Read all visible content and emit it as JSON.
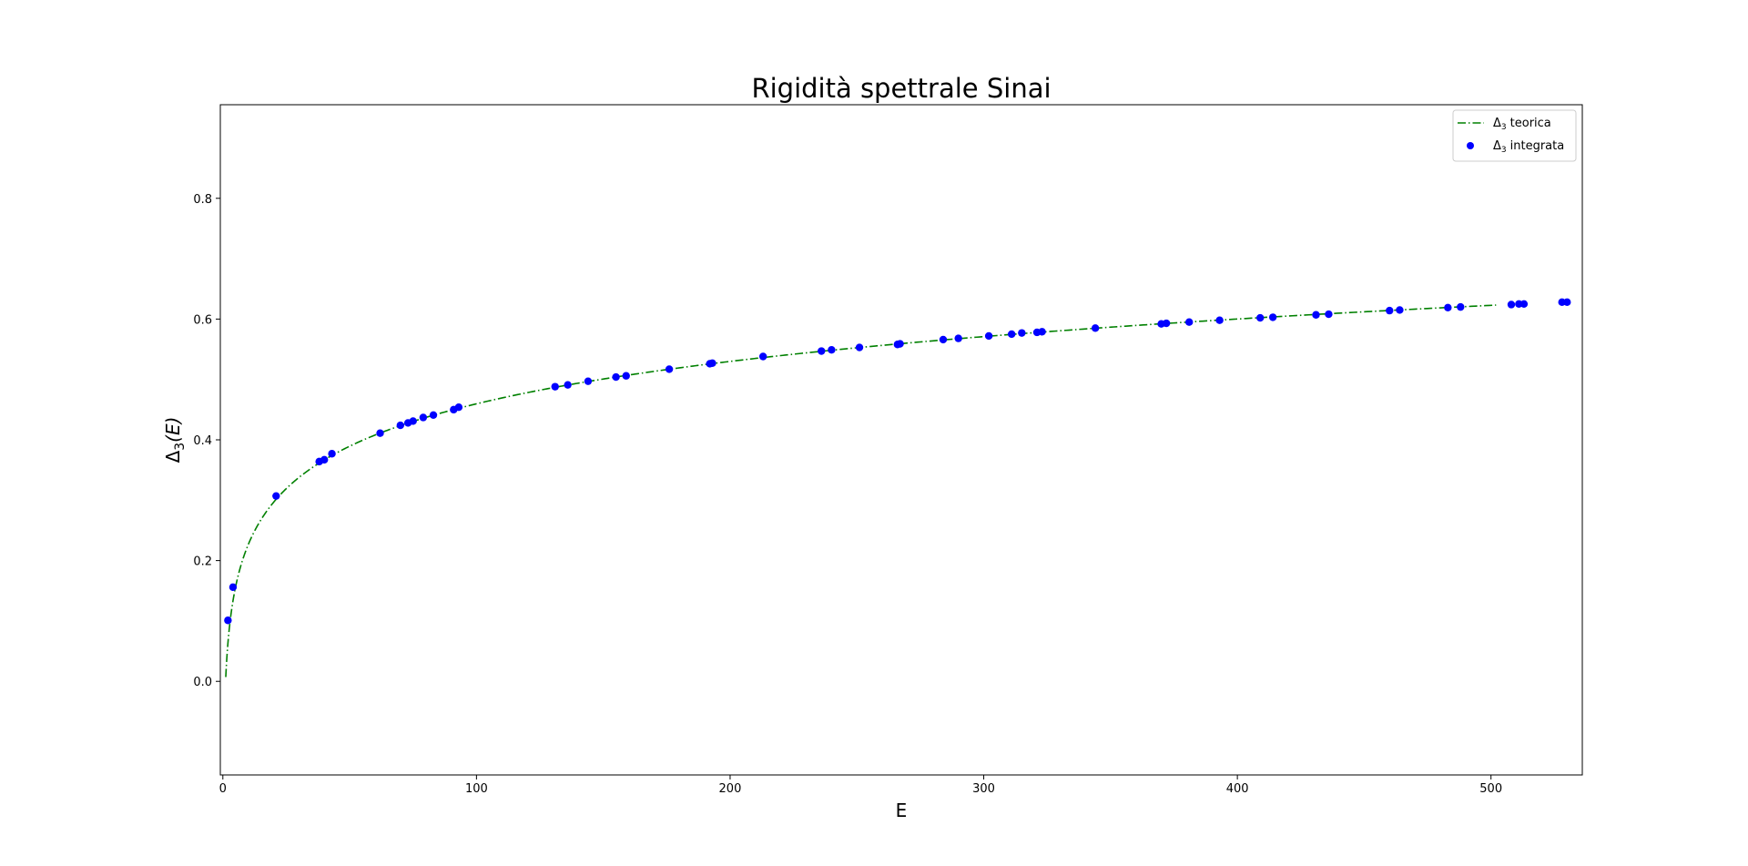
{
  "chart_data": {
    "type": "line+scatter",
    "title": "Rigidità spettrale Sinai",
    "xlabel": "E",
    "ylabel_base": "Δ",
    "ylabel_sub": "3",
    "ylabel_arg": "(E)",
    "xlim": [
      -1,
      536
    ],
    "ylim": [
      -0.155,
      0.955
    ],
    "xticks": [
      0,
      100,
      200,
      300,
      400,
      500
    ],
    "xtick_labels": [
      "0",
      "100",
      "200",
      "300",
      "400",
      "500"
    ],
    "yticks": [
      0.0,
      0.2,
      0.4,
      0.6,
      0.8
    ],
    "ytick_labels": [
      "0.0",
      "0.2",
      "0.4",
      "0.6",
      "0.8"
    ],
    "grid": false,
    "legend_position": "top-right",
    "colors": {
      "theory": "#008000",
      "data": "#0000ff"
    },
    "series": [
      {
        "name": "teorica",
        "name_prefix": "Δ",
        "name_sub": "3",
        "style": "dash-dot line",
        "formula": "(ln(2*pi*E) + gamma - 5/4 - pi^2/8) / pi^2",
        "x_range": [
          1.15,
          502
        ]
      },
      {
        "name": "integrata",
        "name_prefix": "Δ",
        "name_sub": "3",
        "style": "scatter",
        "points": [
          [
            2,
            0.101
          ],
          [
            4,
            0.156
          ],
          [
            21,
            0.307
          ],
          [
            38,
            0.364
          ],
          [
            40,
            0.367
          ],
          [
            43,
            0.377
          ],
          [
            62,
            0.411
          ],
          [
            70,
            0.424
          ],
          [
            73,
            0.428
          ],
          [
            75,
            0.431
          ],
          [
            79,
            0.437
          ],
          [
            83,
            0.441
          ],
          [
            91,
            0.45
          ],
          [
            93,
            0.454
          ],
          [
            131,
            0.488
          ],
          [
            136,
            0.491
          ],
          [
            144,
            0.497
          ],
          [
            155,
            0.504
          ],
          [
            159,
            0.506
          ],
          [
            176,
            0.517
          ],
          [
            192,
            0.526
          ],
          [
            193,
            0.527
          ],
          [
            213,
            0.538
          ],
          [
            236,
            0.547
          ],
          [
            240,
            0.549
          ],
          [
            251,
            0.553
          ],
          [
            266,
            0.558
          ],
          [
            267,
            0.559
          ],
          [
            284,
            0.566
          ],
          [
            290,
            0.568
          ],
          [
            302,
            0.572
          ],
          [
            311,
            0.575
          ],
          [
            315,
            0.577
          ],
          [
            321,
            0.578
          ],
          [
            323,
            0.579
          ],
          [
            344,
            0.585
          ],
          [
            370,
            0.592
          ],
          [
            372,
            0.593
          ],
          [
            381,
            0.595
          ],
          [
            393,
            0.598
          ],
          [
            409,
            0.602
          ],
          [
            414,
            0.603
          ],
          [
            431,
            0.607
          ],
          [
            436,
            0.608
          ],
          [
            460,
            0.614
          ],
          [
            464,
            0.615
          ],
          [
            483,
            0.619
          ],
          [
            488,
            0.62
          ],
          [
            508,
            0.624
          ],
          [
            511,
            0.625
          ],
          [
            513,
            0.625
          ],
          [
            528,
            0.628
          ],
          [
            530,
            0.628
          ]
        ]
      }
    ]
  }
}
